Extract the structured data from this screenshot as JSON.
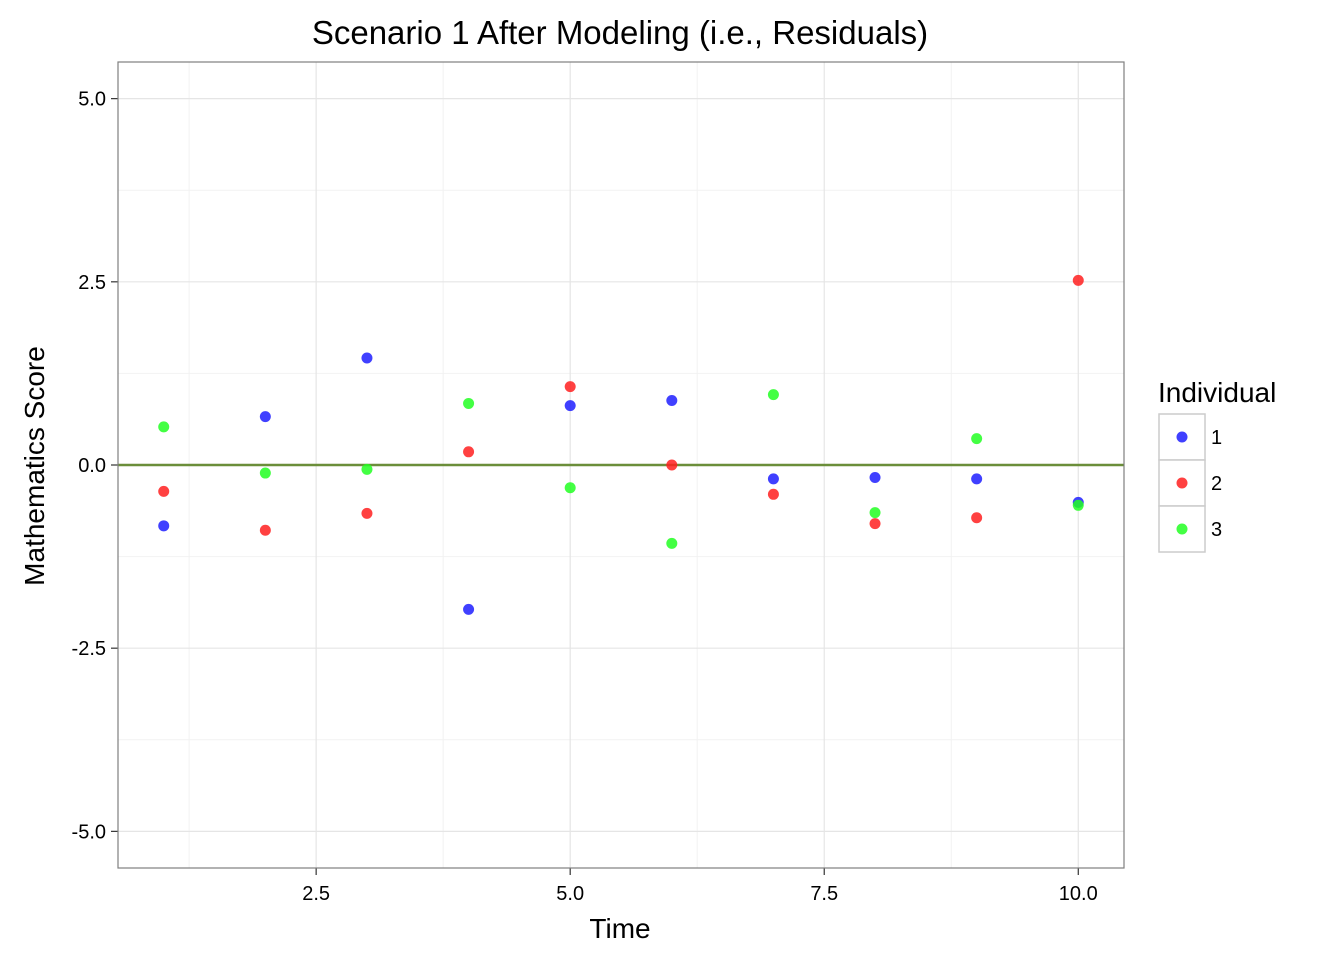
{
  "chart_data": {
    "type": "scatter",
    "title": "Scenario 1 After Modeling (i.e., Residuals)",
    "xlabel": "Time",
    "ylabel": "Mathematics Score",
    "xlim": [
      0.55,
      10.45
    ],
    "ylim": [
      -5.5,
      5.5
    ],
    "x_ticks": [
      2.5,
      5.0,
      7.5,
      10.0
    ],
    "x_tick_labels": [
      "2.5",
      "5.0",
      "7.5",
      "10.0"
    ],
    "y_ticks": [
      -5.0,
      -2.5,
      0.0,
      2.5,
      5.0
    ],
    "y_tick_labels": [
      "-5.0",
      "-2.5",
      "0.0",
      "2.5",
      "5.0"
    ],
    "x_minor": [
      1.25,
      3.75,
      6.25,
      8.75
    ],
    "y_minor": [
      -3.75,
      -1.25,
      1.25,
      3.75
    ],
    "grid": true,
    "hline": {
      "y": 0.0,
      "color": "#6b8e3a"
    },
    "legend": {
      "title": "Individual",
      "position": "right"
    },
    "series": [
      {
        "name": "1",
        "color": "#1f1fff",
        "x": [
          1,
          2,
          3,
          4,
          5,
          6,
          7,
          8,
          9,
          10
        ],
        "y": [
          -0.83,
          0.66,
          1.46,
          -1.97,
          0.81,
          0.88,
          -0.19,
          -0.17,
          -0.19,
          -0.51
        ]
      },
      {
        "name": "2",
        "color": "#ff2020",
        "x": [
          1,
          2,
          3,
          4,
          5,
          6,
          7,
          8,
          9,
          10
        ],
        "y": [
          -0.36,
          -0.89,
          -0.66,
          0.18,
          1.07,
          0.0,
          -0.4,
          -0.8,
          -0.72,
          2.52
        ]
      },
      {
        "name": "3",
        "color": "#22ff22",
        "x": [
          1,
          2,
          3,
          4,
          5,
          6,
          7,
          8,
          9,
          10
        ],
        "y": [
          0.52,
          -0.11,
          -0.06,
          0.84,
          -0.31,
          -1.07,
          0.96,
          -0.65,
          0.36,
          -0.55
        ]
      }
    ]
  }
}
